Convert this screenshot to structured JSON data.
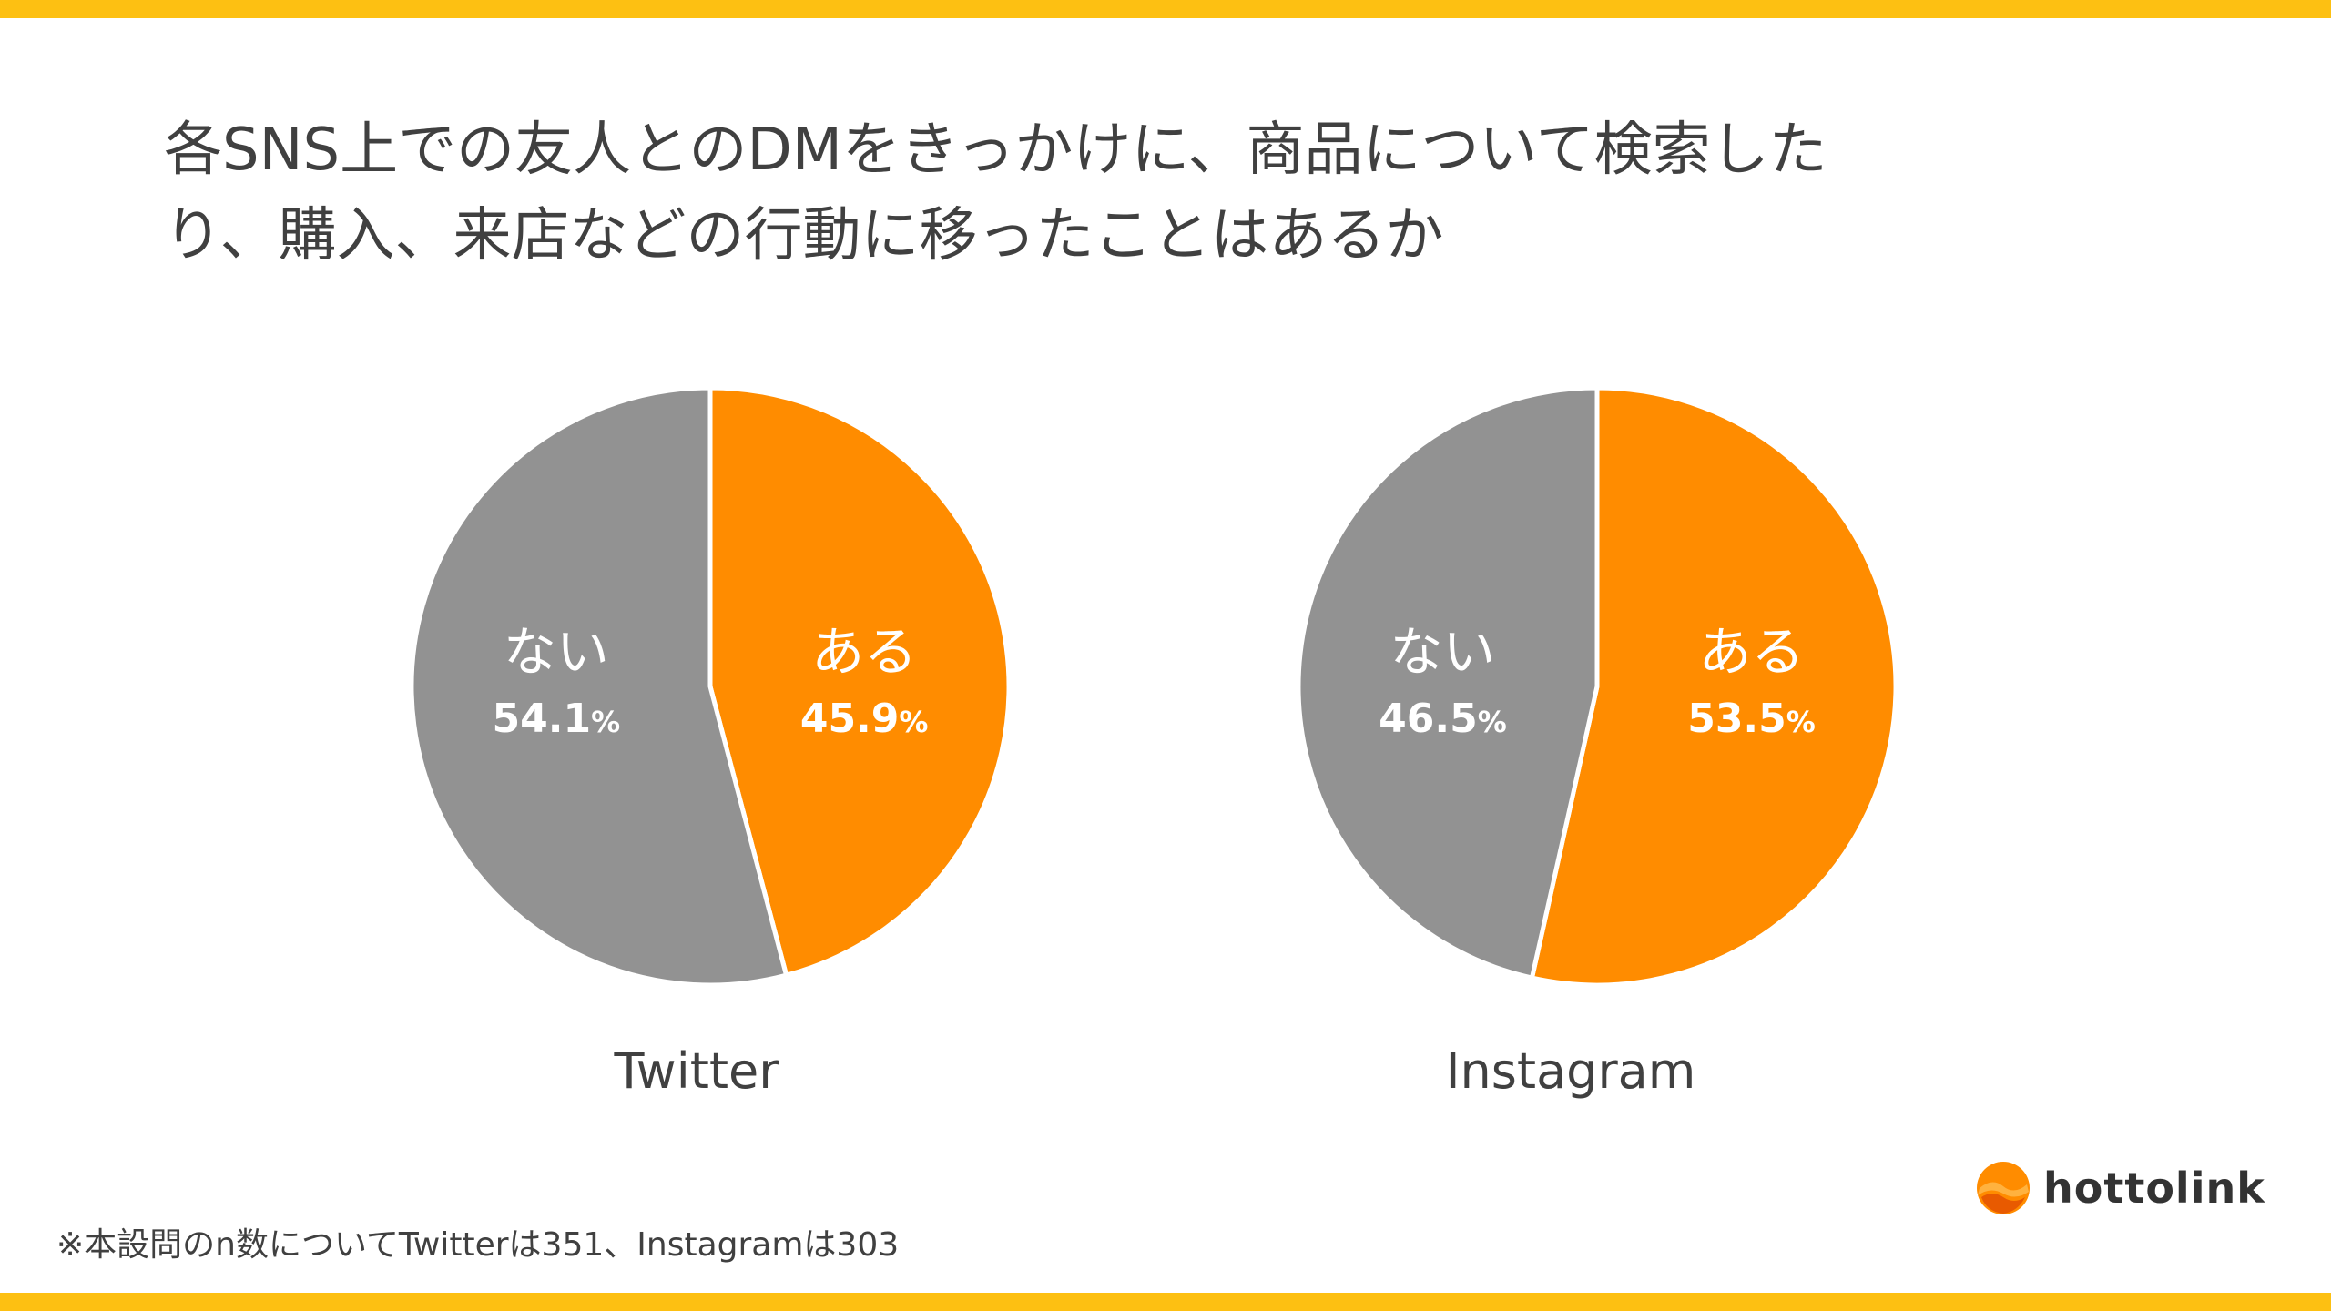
{
  "colors": {
    "accent_bar": "#FDC012",
    "yes": "#FF8C00",
    "no": "#929292"
  },
  "title_lines": [
    "各SNS上での友人とのDMをきっかけに、商品について検索した",
    "り、購入、来店などの行動に移ったことはあるか"
  ],
  "chart_data": [
    {
      "type": "pie",
      "title": "Twitter",
      "slices": [
        {
          "label": "ある",
          "value": 45.9,
          "display": "45.9",
          "unit": "%",
          "color": "#FF8C00"
        },
        {
          "label": "ない",
          "value": 54.1,
          "display": "54.1",
          "unit": "%",
          "color": "#929292"
        }
      ]
    },
    {
      "type": "pie",
      "title": "Instagram",
      "slices": [
        {
          "label": "ある",
          "value": 53.5,
          "display": "53.5",
          "unit": "%",
          "color": "#FF8C00"
        },
        {
          "label": "ない",
          "value": 46.5,
          "display": "46.5",
          "unit": "%",
          "color": "#929292"
        }
      ]
    }
  ],
  "footnote": "※本設問のn数についてTwitterは351、Instagramは303",
  "logo": {
    "text": "hottolink",
    "icon": "hottolink-logo-icon"
  }
}
